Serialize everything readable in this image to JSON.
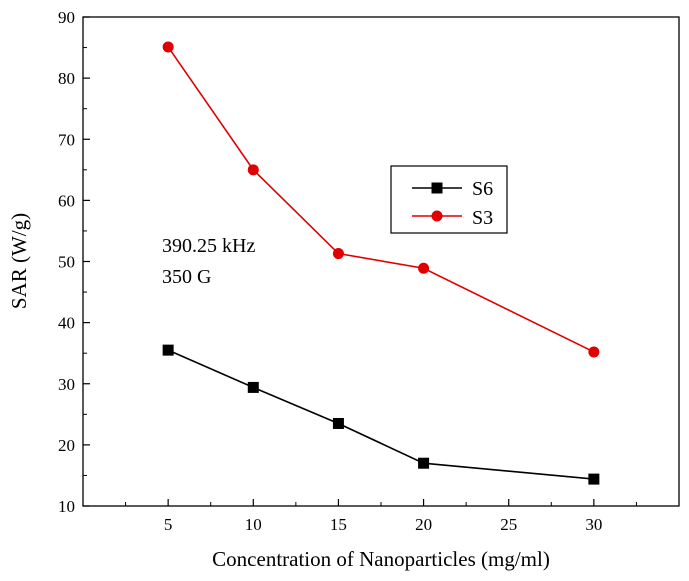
{
  "chart_data": {
    "type": "line",
    "title": "",
    "xlabel": "Concentration of Nanoparticles (mg/ml)",
    "ylabel": "SAR (W/g)",
    "xlim": [
      0,
      35
    ],
    "ylim": [
      10,
      90
    ],
    "xticks": [
      5,
      10,
      15,
      20,
      25,
      30
    ],
    "yticks": [
      10,
      20,
      30,
      40,
      50,
      60,
      70,
      80,
      90
    ],
    "grid": false,
    "legend_position": "center-right",
    "annotations": [
      "390.25 kHz",
      "350 G"
    ],
    "series": [
      {
        "name": "S6",
        "marker": "square",
        "color": "#000000",
        "x": [
          5,
          10,
          15,
          20,
          30
        ],
        "y": [
          35.5,
          29.4,
          23.5,
          17.0,
          14.4
        ]
      },
      {
        "name": "S3",
        "marker": "circle",
        "color": "#e00000",
        "x": [
          5,
          10,
          15,
          20,
          30
        ],
        "y": [
          85.1,
          65.0,
          51.3,
          48.9,
          35.2
        ]
      }
    ]
  }
}
